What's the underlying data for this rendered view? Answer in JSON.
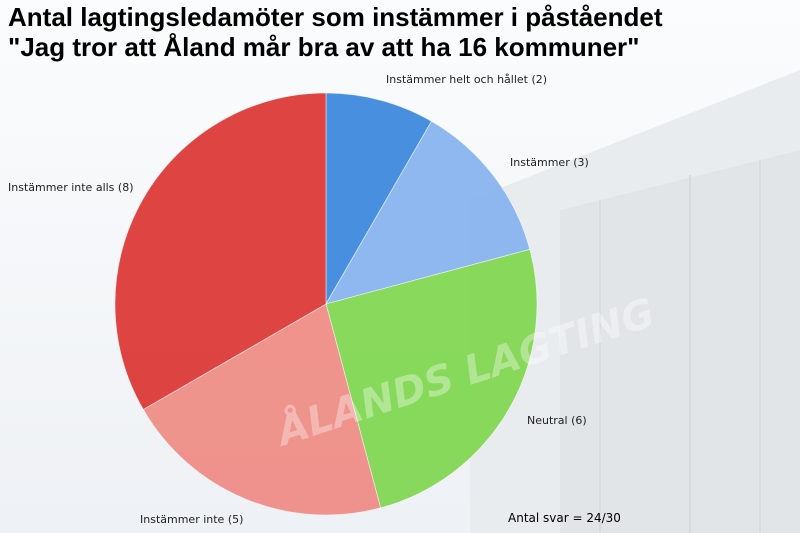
{
  "title_line1": "Antal lagtingsledamöter som instämmer i påståendet",
  "title_line2": "\"Jag tror att Åland mår bra av att ha 16 kommuner\"",
  "footnote": "Antal svar = 24/30",
  "watermark_text": "ÅLANDS LAGTING",
  "chart_data": {
    "type": "pie",
    "categories": [
      "Instämmer helt och hållet",
      "Instämmer",
      "Neutral",
      "Instämmer inte",
      "Instämmer inte alls"
    ],
    "values": [
      2,
      3,
      6,
      5,
      8
    ],
    "labels": [
      "Instämmer helt och hållet (2)",
      "Instämmer (3)",
      "Neutral (6)",
      "Instämmer inte (5)",
      "Instämmer inte alls (8)"
    ],
    "colors": [
      "#3b86dd",
      "#86b3ef",
      "#7fd650",
      "#ef8b84",
      "#dc3633"
    ],
    "start_angle_deg": 0,
    "direction": "clockwise"
  }
}
